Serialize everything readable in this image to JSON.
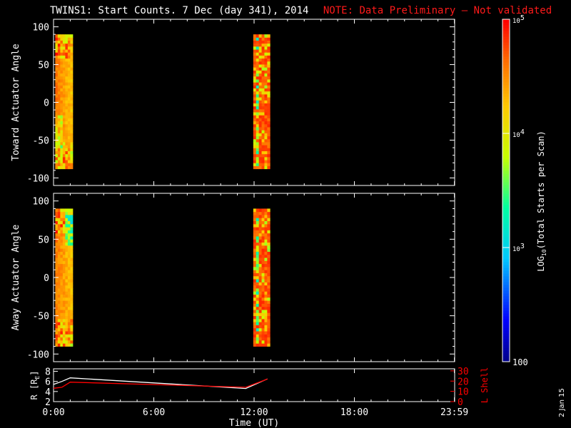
{
  "title": {
    "main": "TWINS1: Start Counts.  7 Dec (day 341), 2014",
    "note": "NOTE: Data Preliminary – Not validated"
  },
  "side_date": "2 Jan 15",
  "colors": {
    "background": "#000000",
    "axes": "#ffffff",
    "note": "#ff1a1a",
    "r_line": "#ffffff",
    "lshell_line": "#ff0000"
  },
  "chart_data": [
    {
      "type": "heatmap",
      "panel": "toward",
      "ylabel": "Toward Actuator Angle",
      "y_ticks": [
        -100,
        -50,
        0,
        50,
        100
      ],
      "ylim": [
        -110,
        110
      ],
      "xlim": [
        0,
        24
      ],
      "angle_range": [
        -88,
        90
      ],
      "time_bands": [
        {
          "start": 0.1,
          "end": 1.15,
          "description": "scan block 1"
        },
        {
          "start": 11.95,
          "end": 12.95,
          "description": "scan block 2"
        }
      ],
      "value_range_log10": [
        2,
        5
      ],
      "colorscale": "rainbow"
    },
    {
      "type": "heatmap",
      "panel": "away",
      "ylabel": "Away Actuator Angle",
      "y_ticks": [
        -100,
        -50,
        0,
        50,
        100
      ],
      "ylim": [
        -110,
        110
      ],
      "xlim": [
        0,
        24
      ],
      "angle_range": [
        -90,
        90
      ],
      "time_bands": [
        {
          "start": 0.1,
          "end": 1.15
        },
        {
          "start": 11.95,
          "end": 12.95
        }
      ],
      "value_range_log10": [
        2,
        5
      ],
      "colorscale": "rainbow"
    },
    {
      "type": "line",
      "panel": "ephemeris",
      "ylabel_left": "R [R",
      "ylabel_left_sub": "E",
      "ylabel_left_close": "]",
      "ylabel_right": "L Shell",
      "left_ticks": [
        2,
        4,
        6,
        8
      ],
      "left_ylim": [
        2,
        8.5
      ],
      "right_ticks": [
        0,
        10,
        20,
        30
      ],
      "right_ylim": [
        0,
        32
      ],
      "xlim": [
        0,
        24
      ],
      "series": [
        {
          "name": "R",
          "axis": "left",
          "x": [
            0,
            0.5,
            1.0,
            11.5,
            12.8
          ],
          "y": [
            5.4,
            6.0,
            6.7,
            4.6,
            6.5
          ]
        },
        {
          "name": "L Shell",
          "axis": "right",
          "x": [
            0,
            0.5,
            1.0,
            11.5,
            12.8
          ],
          "y": [
            13,
            14,
            19,
            14,
            22
          ]
        }
      ]
    }
  ],
  "x_axis": {
    "label": "Time (UT)",
    "ticks": [
      {
        "value": 0,
        "label": "0:00"
      },
      {
        "value": 6,
        "label": "6:00"
      },
      {
        "value": 12,
        "label": "12:00"
      },
      {
        "value": 18,
        "label": "18:00"
      },
      {
        "value": 23.983,
        "label": "23:59"
      }
    ]
  },
  "colorbar": {
    "label": "LOG",
    "label_sub": "10",
    "label_rest": "(Total Starts per Scan)",
    "ticks": [
      {
        "log": 2,
        "label": "100"
      },
      {
        "log": 3,
        "label": "10",
        "sup": "3"
      },
      {
        "log": 4,
        "label": "10",
        "sup": "4"
      },
      {
        "log": 5,
        "label": "10",
        "sup": "5"
      }
    ]
  }
}
